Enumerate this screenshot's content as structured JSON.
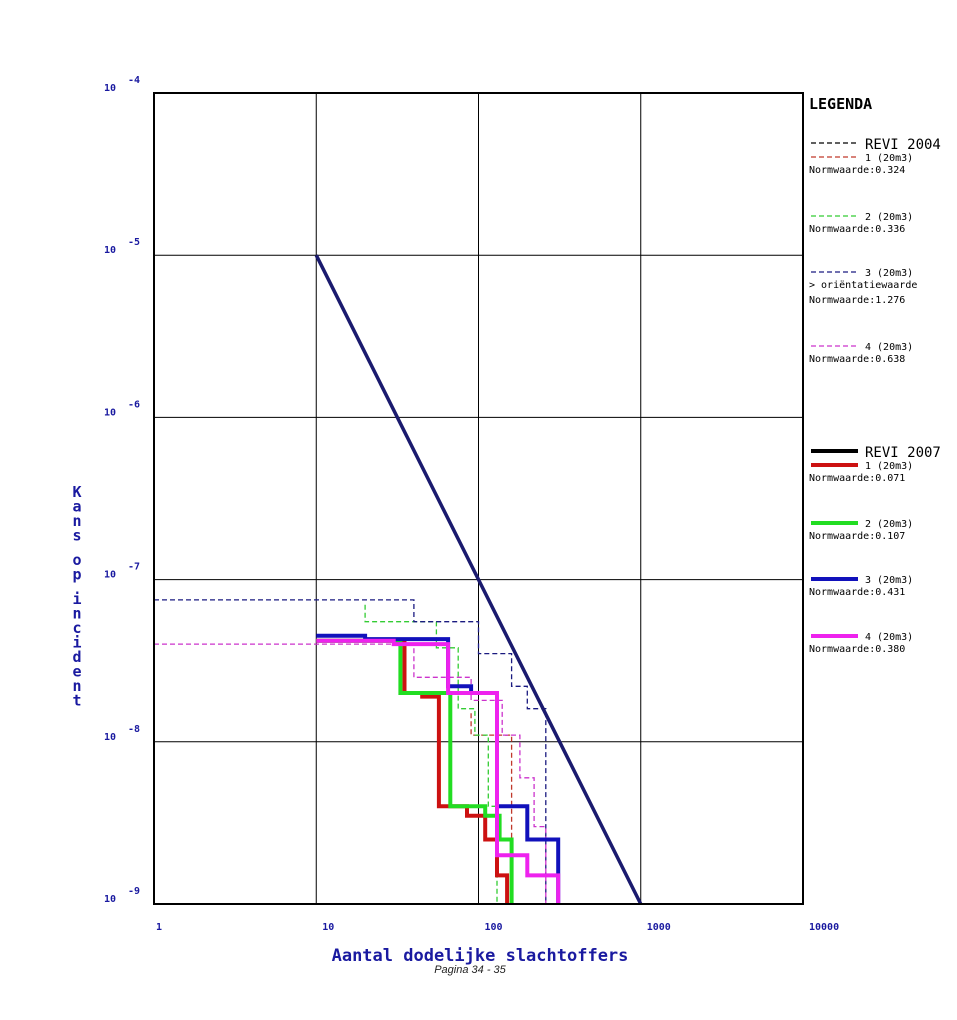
{
  "chart_data": {
    "type": "line",
    "xlabel": "Aantal dodelijke slachtoffers",
    "ylabel": "Kans op incident",
    "xscale": "log",
    "yscale": "log",
    "xlim": [
      1,
      10000
    ],
    "ylim": [
      1e-09,
      0.0001
    ],
    "grid": true,
    "legend_position": "right",
    "x_ticks": [
      "1",
      "10",
      "100",
      "1000",
      "10000"
    ],
    "y_ticks": [
      {
        "base": "10",
        "exp": "-4"
      },
      {
        "base": "10",
        "exp": "-5"
      },
      {
        "base": "10",
        "exp": "-6"
      },
      {
        "base": "10",
        "exp": "-7"
      },
      {
        "base": "10",
        "exp": "-8"
      },
      {
        "base": "10",
        "exp": "-9"
      }
    ],
    "legend": {
      "title": "LEGENDA",
      "groups": [
        {
          "heading": "REVI 2004",
          "style": "dashed",
          "entries": [
            {
              "label": "1 (20m3)",
              "note": "",
              "norm": "Normwaarde:0.324",
              "color": "#c0392b"
            },
            {
              "label": "2 (20m3)",
              "note": "",
              "norm": "Normwaarde:0.336",
              "color": "#33cc33"
            },
            {
              "label": "3 (20m3)",
              "note": "> oriëntatiewaarde",
              "norm": "Normwaarde:1.276",
              "color": "#1a1a80"
            },
            {
              "label": "4 (20m3)",
              "note": "",
              "norm": "Normwaarde:0.638",
              "color": "#cc33cc"
            }
          ]
        },
        {
          "heading": "REVI 2007",
          "style": "solid",
          "entries": [
            {
              "label": "1 (20m3)",
              "note": "",
              "norm": "Normwaarde:0.071",
              "color": "#cc1111"
            },
            {
              "label": "2 (20m3)",
              "note": "",
              "norm": "Normwaarde:0.107",
              "color": "#22dd22"
            },
            {
              "label": "3 (20m3)",
              "note": "",
              "norm": "Normwaarde:0.431",
              "color": "#1111bb"
            },
            {
              "label": "4 (20m3)",
              "note": "",
              "norm": "Normwaarde:0.380",
              "color": "#ee22ee"
            }
          ]
        }
      ]
    },
    "guide_line": {
      "color": "#1a1a6e",
      "points": [
        [
          10,
          1e-05
        ],
        [
          1000,
          1e-09
        ]
      ]
    },
    "series": [
      {
        "group": "REVI 2004",
        "name": "1 (20m3)",
        "style": "dashed",
        "color": "#c0392b",
        "points": [
          [
            90,
            1.5e-08
          ],
          [
            90,
            1.1e-08
          ],
          [
            160,
            1.1e-08
          ],
          [
            160,
            1e-09
          ]
        ]
      },
      {
        "group": "REVI 2004",
        "name": "2 (20m3)",
        "style": "dashed",
        "color": "#33cc33",
        "points": [
          [
            20,
            7e-08
          ],
          [
            20,
            5.5e-08
          ],
          [
            55,
            5.5e-08
          ],
          [
            55,
            3.8e-08
          ],
          [
            75,
            3.8e-08
          ],
          [
            75,
            1.6e-08
          ],
          [
            95,
            1.6e-08
          ],
          [
            95,
            1.1e-08
          ],
          [
            115,
            1.1e-08
          ],
          [
            115,
            4e-09
          ],
          [
            130,
            4e-09
          ],
          [
            130,
            1e-09
          ]
        ]
      },
      {
        "group": "REVI 2004",
        "name": "3 (20m3)",
        "style": "dashed",
        "color": "#1a1a80",
        "points": [
          [
            1,
            7.5e-08
          ],
          [
            40,
            7.5e-08
          ],
          [
            40,
            5.5e-08
          ],
          [
            100,
            5.5e-08
          ],
          [
            100,
            3.5e-08
          ],
          [
            160,
            3.5e-08
          ],
          [
            160,
            2.2e-08
          ],
          [
            200,
            2.2e-08
          ],
          [
            200,
            1.6e-08
          ],
          [
            260,
            1.6e-08
          ],
          [
            260,
            1e-09
          ]
        ]
      },
      {
        "group": "REVI 2004",
        "name": "4 (20m3)",
        "style": "dashed",
        "color": "#cc33cc",
        "points": [
          [
            1,
            4e-08
          ],
          [
            40,
            4e-08
          ],
          [
            40,
            2.5e-08
          ],
          [
            90,
            2.5e-08
          ],
          [
            90,
            1.8e-08
          ],
          [
            140,
            1.8e-08
          ],
          [
            140,
            1.1e-08
          ],
          [
            180,
            1.1e-08
          ],
          [
            180,
            6e-09
          ],
          [
            220,
            6e-09
          ],
          [
            220,
            3e-09
          ],
          [
            260,
            3e-09
          ],
          [
            260,
            1e-09
          ]
        ]
      },
      {
        "group": "REVI 2007",
        "name": "1 (20m3)",
        "style": "solid",
        "color": "#cc1111",
        "points": [
          [
            10,
            4.2e-08
          ],
          [
            35,
            4.2e-08
          ],
          [
            35,
            2e-08
          ],
          [
            45,
            2e-08
          ],
          [
            45,
            1.9e-08
          ],
          [
            57,
            1.9e-08
          ],
          [
            57,
            4e-09
          ],
          [
            85,
            4e-09
          ],
          [
            85,
            3.5e-09
          ],
          [
            110,
            3.5e-09
          ],
          [
            110,
            2.5e-09
          ],
          [
            130,
            2.5e-09
          ],
          [
            130,
            1.5e-09
          ],
          [
            150,
            1.5e-09
          ],
          [
            150,
            1e-09
          ]
        ]
      },
      {
        "group": "REVI 2007",
        "name": "2 (20m3)",
        "style": "solid",
        "color": "#22dd22",
        "points": [
          [
            10,
            4.2e-08
          ],
          [
            33,
            4.2e-08
          ],
          [
            33,
            2e-08
          ],
          [
            45,
            2e-08
          ],
          [
            45,
            2e-08
          ],
          [
            67,
            2e-08
          ],
          [
            67,
            4e-09
          ],
          [
            110,
            4e-09
          ],
          [
            110,
            3.5e-09
          ],
          [
            135,
            3.5e-09
          ],
          [
            135,
            2.5e-09
          ],
          [
            160,
            2.5e-09
          ],
          [
            160,
            1e-09
          ]
        ]
      },
      {
        "group": "REVI 2007",
        "name": "3 (20m3)",
        "style": "solid",
        "color": "#1111bb",
        "points": [
          [
            10,
            4.5e-08
          ],
          [
            20,
            4.5e-08
          ],
          [
            20,
            4.3e-08
          ],
          [
            65,
            4.3e-08
          ],
          [
            65,
            2.2e-08
          ],
          [
            90,
            2.2e-08
          ],
          [
            90,
            2e-08
          ],
          [
            130,
            2e-08
          ],
          [
            130,
            4e-09
          ],
          [
            200,
            4e-09
          ],
          [
            200,
            2.5e-09
          ],
          [
            310,
            2.5e-09
          ],
          [
            310,
            1e-09
          ]
        ]
      },
      {
        "group": "REVI 2007",
        "name": "4 (20m3)",
        "style": "solid",
        "color": "#ee22ee",
        "points": [
          [
            10,
            4.2e-08
          ],
          [
            30,
            4.2e-08
          ],
          [
            30,
            4e-08
          ],
          [
            65,
            4e-08
          ],
          [
            65,
            2e-08
          ],
          [
            130,
            2e-08
          ],
          [
            130,
            2e-09
          ],
          [
            200,
            2e-09
          ],
          [
            200,
            1.5e-09
          ],
          [
            310,
            1.5e-09
          ],
          [
            310,
            1e-09
          ]
        ]
      }
    ]
  },
  "footer": {
    "text": "Pagina 34 - 35"
  }
}
